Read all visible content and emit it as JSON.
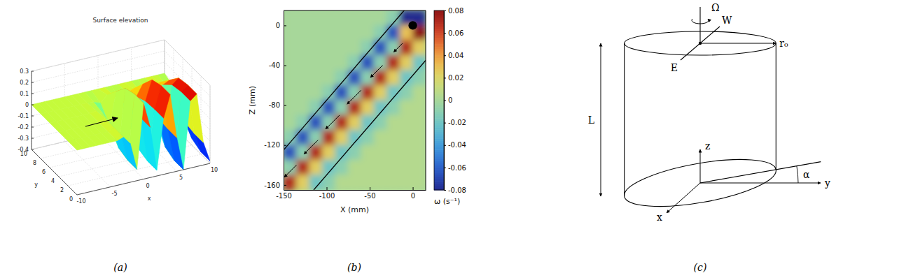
{
  "chart_data": [
    {
      "type": "surface",
      "title": "Surface elevation",
      "xlabel": "x",
      "ylabel": "y",
      "x": [
        -10,
        -9,
        -8,
        -7,
        -6,
        -5,
        -4,
        -3,
        -2,
        -1,
        0,
        1,
        2,
        3,
        4,
        5,
        6,
        7,
        8,
        9,
        10
      ],
      "y": [
        0,
        2,
        4,
        6,
        8,
        10
      ],
      "z": [
        [
          0,
          0,
          0,
          0,
          0,
          0,
          0,
          0.02,
          -0.05,
          -0.3,
          0.28,
          0.05,
          -0.35,
          0.1,
          0.3,
          -0.1,
          -0.4,
          0.2,
          0.25,
          -0.2,
          -0.38
        ],
        [
          0,
          0,
          0,
          0,
          0,
          0,
          0,
          0.02,
          -0.05,
          -0.3,
          0.28,
          0.05,
          -0.35,
          0.1,
          0.3,
          -0.1,
          -0.4,
          0.2,
          0.25,
          -0.2,
          -0.38
        ],
        [
          0,
          0,
          0,
          0,
          0,
          0,
          0,
          0.02,
          -0.05,
          -0.27,
          0.25,
          0.05,
          -0.32,
          0.09,
          0.27,
          -0.09,
          -0.36,
          0.18,
          0.23,
          -0.18,
          -0.34
        ],
        [
          0,
          0,
          0,
          0,
          0,
          0,
          0,
          0.01,
          -0.03,
          -0.15,
          0.14,
          0.03,
          -0.18,
          0.05,
          0.15,
          -0.05,
          -0.2,
          0.1,
          0.13,
          -0.1,
          -0.19
        ],
        [
          0,
          0,
          0,
          0,
          0,
          0,
          0,
          0,
          -0.01,
          -0.03,
          0.03,
          0.01,
          -0.04,
          0.01,
          0.03,
          -0.01,
          -0.04,
          0.02,
          0.03,
          -0.02,
          -0.04
        ],
        [
          0,
          0,
          0,
          0,
          0,
          0,
          0,
          0,
          0,
          0,
          0,
          0,
          0,
          0,
          0,
          0,
          0,
          0,
          0,
          0,
          0
        ]
      ],
      "xlim": [
        -10,
        10
      ],
      "xticks": [
        -10,
        -5,
        0,
        5,
        10
      ],
      "ylim": [
        0,
        10
      ],
      "yticks": [
        0,
        2,
        4,
        6,
        8,
        10
      ],
      "zlim": [
        -0.4,
        0.3
      ],
      "zticks": [
        -0.4,
        -0.3,
        -0.2,
        -0.1,
        0,
        0.1,
        0.2,
        0.3
      ],
      "grid": true
    },
    {
      "type": "vector_field",
      "xlabel": "X (mm)",
      "ylabel": "Z (mm)",
      "xlim": [
        -150,
        15
      ],
      "xticks": [
        -150,
        -100,
        -50,
        0
      ],
      "ylim": [
        -165,
        15
      ],
      "yticks": [
        -160,
        -120,
        -80,
        -40,
        0
      ],
      "cell_x_edges": [
        -150,
        -135,
        -120,
        -105,
        -90,
        -75,
        -60,
        -45,
        -30,
        -15,
        0,
        15
      ],
      "cell_z_edges": [
        15,
        0,
        -15,
        -30,
        -45,
        -60,
        -75,
        -90,
        -105,
        -120,
        -135,
        -150,
        -165
      ],
      "vorticity": [
        [
          0,
          0,
          0,
          0,
          0,
          0,
          0,
          0,
          -0.01,
          -0.08,
          -0.08
        ],
        [
          0,
          0,
          0,
          0,
          0,
          0,
          0,
          -0.01,
          -0.065,
          0.03,
          0.08
        ],
        [
          0,
          0,
          0,
          0,
          0,
          0,
          -0.01,
          -0.065,
          -0.01,
          0.07,
          0.025
        ],
        [
          0,
          0,
          0,
          0,
          0,
          -0.01,
          -0.065,
          -0.01,
          0.07,
          0.025,
          -0.02
        ],
        [
          0,
          0,
          0,
          0,
          -0.01,
          -0.065,
          -0.01,
          0.07,
          0.025,
          -0.02,
          -0.01
        ],
        [
          0,
          0,
          0,
          -0.01,
          -0.065,
          -0.01,
          0.07,
          0.025,
          -0.02,
          -0.01,
          0.005
        ],
        [
          0,
          0,
          -0.01,
          -0.065,
          -0.01,
          0.07,
          0.025,
          -0.02,
          -0.01,
          0.005,
          0.005
        ],
        [
          0,
          -0.01,
          -0.065,
          -0.01,
          0.07,
          0.025,
          -0.02,
          -0.01,
          0.005,
          0.005,
          0.005
        ],
        [
          -0.01,
          -0.065,
          -0.01,
          0.07,
          0.025,
          -0.02,
          -0.01,
          0.005,
          0.005,
          0.005,
          0.005
        ],
        [
          -0.065,
          -0.01,
          0.07,
          0.025,
          -0.02,
          -0.01,
          0.005,
          0.005,
          0.005,
          0.005,
          0.005
        ],
        [
          -0.01,
          0.07,
          0.025,
          -0.02,
          -0.01,
          0.005,
          0.005,
          0.005,
          0.005,
          0.005,
          0.005
        ],
        [
          0.07,
          0.025,
          -0.02,
          -0.01,
          0.005,
          0.005,
          0.005,
          0.005,
          0.005,
          0.005,
          0.005
        ]
      ],
      "colorbar": {
        "label": "ω (s⁻¹)",
        "range": [
          -0.08,
          0.08
        ],
        "ticks": [
          -0.08,
          -0.06,
          -0.04,
          -0.02,
          0,
          0.02,
          0.04,
          0.06,
          0.08
        ]
      },
      "vectors": {
        "x": [
          -135,
          -110,
          -85,
          -60,
          -35,
          -12
        ],
        "z": [
          -140,
          -115,
          -90,
          -65,
          -40,
          -18
        ],
        "u": [
          -7,
          -8,
          -8,
          -8,
          -7,
          -5
        ],
        "w": [
          -7,
          -8,
          -8,
          -8,
          -7,
          -5
        ]
      },
      "lines": [
        {
          "x": [
            -150,
            -5
          ],
          "z": [
            -125,
            20
          ]
        },
        {
          "x": [
            -115,
            15
          ],
          "z": [
            -165,
            -35
          ]
        }
      ],
      "cylinder": {
        "x": 0,
        "z": 0,
        "r": 5
      }
    }
  ],
  "diagram": {
    "labels": {
      "Omega": "Ω",
      "W": "W",
      "E": "E",
      "r0": "r₀",
      "L": "L",
      "z": "z",
      "y": "y",
      "x": "x",
      "alpha": "α"
    }
  },
  "captions": [
    "(a)",
    "(b)",
    "(c)"
  ]
}
